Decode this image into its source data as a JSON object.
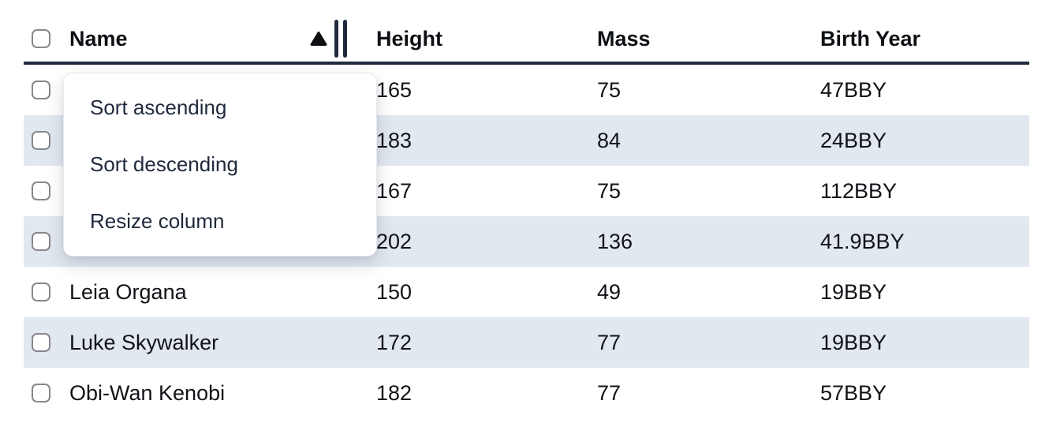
{
  "table": {
    "columns": [
      {
        "label": "Name",
        "sort": "ascending"
      },
      {
        "label": "Height"
      },
      {
        "label": "Mass"
      },
      {
        "label": "Birth Year"
      }
    ],
    "rows": [
      {
        "name": "",
        "height": "165",
        "mass": "75",
        "birth_year": "47BBY"
      },
      {
        "name": "",
        "height": "183",
        "mass": "84",
        "birth_year": "24BBY"
      },
      {
        "name": "",
        "height": "167",
        "mass": "75",
        "birth_year": "112BBY"
      },
      {
        "name": "",
        "height": "202",
        "mass": "136",
        "birth_year": "41.9BBY"
      },
      {
        "name": "Leia Organa",
        "height": "150",
        "mass": "49",
        "birth_year": "19BBY"
      },
      {
        "name": "Luke Skywalker",
        "height": "172",
        "mass": "77",
        "birth_year": "19BBY"
      },
      {
        "name": "Obi-Wan Kenobi",
        "height": "182",
        "mass": "77",
        "birth_year": "57BBY"
      }
    ]
  },
  "menu": {
    "items": [
      {
        "label": "Sort ascending"
      },
      {
        "label": "Sort descending"
      },
      {
        "label": "Resize column"
      }
    ]
  },
  "colors": {
    "stripe": "#e2e8f0",
    "header-border": "#202a3c",
    "menu-text": "#1f2a3c",
    "checkbox-border": "#87878f",
    "sort-icon": "#0d0f12"
  }
}
